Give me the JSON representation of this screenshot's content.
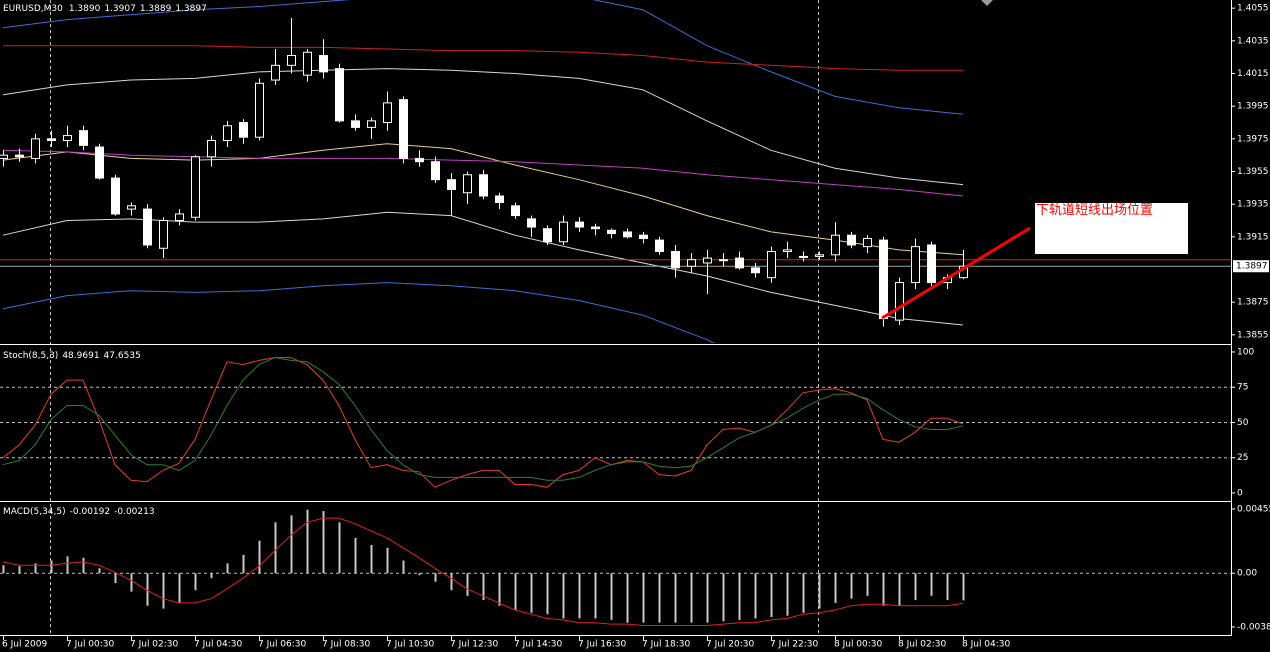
{
  "chart_data": [
    {
      "type": "candlestick",
      "title": "EURUSD,M30",
      "header_labels": [
        "1.3890",
        "1.3907",
        "1.3889",
        "1.3897"
      ],
      "categories": [
        "6 Jul 2009",
        null,
        null,
        null,
        "7 Jul 00:30",
        null,
        null,
        null,
        "7 Jul 02:30",
        null,
        null,
        null,
        "7 Jul 04:30",
        null,
        null,
        null,
        "7 Jul 06:30",
        null,
        null,
        null,
        "7 Jul 08:30",
        null,
        null,
        null,
        "7 Jul 10:30",
        null,
        null,
        null,
        "7 Jul 12:30",
        null,
        null,
        null,
        "7 Jul 14:30",
        null,
        null,
        null,
        "7 Jul 16:30",
        null,
        null,
        null,
        "7 Jul 18:30",
        null,
        null,
        null,
        "7 Jul 20:30",
        null,
        null,
        null,
        "7 Jul 22:30",
        null,
        null,
        null,
        "8 Jul 00:30",
        null,
        null,
        null,
        "8 Jul 02:30",
        null,
        null,
        null,
        "8 Jul 04:30"
      ],
      "open": [
        1.3963,
        1.3965,
        1.3963,
        1.3975,
        1.3974,
        1.398,
        1.397,
        1.3951,
        1.3932,
        1.3932,
        1.3908,
        1.3925,
        1.3927,
        1.3964,
        1.3974,
        1.3985,
        1.3976,
        1.4011,
        1.402,
        1.4014,
        1.4026,
        1.4018,
        1.3986,
        1.3982,
        1.3985,
        1.3999,
        1.3963,
        1.3961,
        1.395,
        1.3942,
        1.3953,
        1.394,
        1.3934,
        1.3926,
        1.392,
        1.3912,
        1.3924,
        1.3921,
        1.3919,
        1.3918,
        1.3916,
        1.3913,
        1.3906,
        1.3897,
        1.3899,
        1.3901,
        1.3902,
        1.3896,
        1.389,
        1.3906,
        1.3903,
        1.3903,
        1.3904,
        1.3916,
        1.3909,
        1.3913,
        1.3864,
        1.3887,
        1.391,
        1.3887,
        1.389
      ],
      "high": [
        1.3968,
        1.3969,
        1.3978,
        1.398,
        1.3983,
        1.3983,
        1.3972,
        1.3953,
        1.3936,
        1.3935,
        1.3927,
        1.3932,
        1.3965,
        1.3977,
        1.3986,
        1.3987,
        1.4012,
        1.403,
        1.4049,
        1.403,
        1.4036,
        1.4021,
        1.399,
        1.3988,
        1.4004,
        1.4001,
        1.3968,
        1.3964,
        1.3954,
        1.3955,
        1.3956,
        1.3942,
        1.3936,
        1.3928,
        1.3922,
        1.3928,
        1.3927,
        1.3923,
        1.392,
        1.392,
        1.3918,
        1.3915,
        1.391,
        1.3905,
        1.3907,
        1.3905,
        1.3906,
        1.3899,
        1.3909,
        1.3912,
        1.3906,
        1.3906,
        1.3924,
        1.3918,
        1.3916,
        1.3915,
        1.389,
        1.3914,
        1.3912,
        1.3892,
        1.3907
      ],
      "low": [
        1.3958,
        1.3961,
        1.396,
        1.397,
        1.397,
        1.3968,
        1.395,
        1.3928,
        1.3928,
        1.3908,
        1.3902,
        1.3922,
        1.3925,
        1.3958,
        1.397,
        1.3972,
        1.3974,
        1.4008,
        1.4015,
        1.401,
        1.4012,
        1.3985,
        1.398,
        1.3975,
        1.398,
        1.396,
        1.3958,
        1.3948,
        1.3928,
        1.3935,
        1.3938,
        1.3932,
        1.3926,
        1.3915,
        1.391,
        1.391,
        1.3918,
        1.3916,
        1.3914,
        1.3914,
        1.3911,
        1.3904,
        1.389,
        1.3893,
        1.388,
        1.3897,
        1.3895,
        1.389,
        1.3887,
        1.3902,
        1.39,
        1.3901,
        1.39,
        1.3908,
        1.3905,
        1.386,
        1.3861,
        1.3883,
        1.3885,
        1.3883,
        1.3889
      ],
      "close": [
        1.3965,
        1.3964,
        1.3975,
        1.3974,
        1.3977,
        1.3971,
        1.3951,
        1.3929,
        1.3934,
        1.391,
        1.3925,
        1.3929,
        1.3964,
        1.3974,
        1.3983,
        1.3976,
        1.4009,
        1.402,
        1.4026,
        1.4028,
        1.4016,
        1.3986,
        1.3982,
        1.3986,
        1.3997,
        1.3963,
        1.3961,
        1.395,
        1.3944,
        1.3953,
        1.394,
        1.3936,
        1.3928,
        1.3921,
        1.3912,
        1.3924,
        1.3921,
        1.392,
        1.3917,
        1.3915,
        1.3914,
        1.3906,
        1.3896,
        1.3901,
        1.3902,
        1.3901,
        1.3896,
        1.3893,
        1.3906,
        1.3907,
        1.3903,
        1.3904,
        1.3916,
        1.391,
        1.3914,
        1.3865,
        1.3887,
        1.3909,
        1.3887,
        1.389,
        1.3897
      ],
      "bull_color": "#000000",
      "bear_color": "#ffffff",
      "overlays": [
        {
          "color": "#3a6fd8",
          "values": [
            1.4043,
            1.4048,
            1.4051,
            1.4054,
            1.4056,
            1.4059,
            1.4062,
            1.4063,
            1.4063,
            1.4062,
            1.4054,
            1.4032,
            1.4016,
            1.4001,
            1.3994,
            1.399
          ]
        },
        {
          "color": "#d8d8d8",
          "values": [
            1.4002,
            1.4008,
            1.4011,
            1.4012,
            1.4016,
            1.4017,
            1.4018,
            1.4017,
            1.4015,
            1.4012,
            1.4005,
            1.3986,
            1.3968,
            1.3957,
            1.3951,
            1.3947
          ]
        },
        {
          "color": "#e8cf86",
          "values": [
            1.3962,
            1.3967,
            1.3963,
            1.3962,
            1.3963,
            1.3968,
            1.3972,
            1.3969,
            1.3959,
            1.395,
            1.394,
            1.3928,
            1.3918,
            1.3913,
            1.3907,
            1.3904
          ]
        },
        {
          "color": "#d8d8d8",
          "values": [
            1.3916,
            1.3925,
            1.3926,
            1.3924,
            1.3924,
            1.3926,
            1.393,
            1.3928,
            1.3916,
            1.3907,
            1.3899,
            1.3891,
            1.3881,
            1.3873,
            1.3865,
            1.3861
          ]
        },
        {
          "color": "#3a6fd8",
          "values": [
            1.3871,
            1.3879,
            1.3882,
            1.3881,
            1.3882,
            1.3885,
            1.3887,
            1.3885,
            1.3882,
            1.3876,
            1.3867,
            1.3852,
            1.3833,
            1.3821,
            1.3815,
            1.3812
          ]
        },
        {
          "color": "#d02020",
          "values": [
            1.4032,
            1.4032,
            1.4032,
            1.4032,
            1.4031,
            1.4031,
            1.403,
            1.4029,
            1.4029,
            1.4028,
            1.4026,
            1.4022,
            1.402,
            1.4018,
            1.4017,
            1.4017
          ]
        },
        {
          "color": "#c040c0",
          "values": [
            1.3968,
            1.3967,
            1.3965,
            1.3964,
            1.3963,
            1.3963,
            1.3963,
            1.3962,
            1.3961,
            1.3959,
            1.3957,
            1.3953,
            1.395,
            1.3947,
            1.3944,
            1.394
          ]
        }
      ],
      "hline": {
        "value": 1.3901,
        "color": "#e02020"
      },
      "bid": 1.3897,
      "bid_color": "#a0a0a0",
      "ylim": [
        1.385,
        1.406
      ],
      "yticks": [
        1.4055,
        1.4035,
        1.4015,
        1.3995,
        1.3975,
        1.3955,
        1.3935,
        1.3915,
        1.3875,
        1.3855
      ],
      "annotation": "下轨道短线出场位置"
    },
    {
      "type": "line",
      "title": "Stoch(8,5,3)",
      "series": [
        {
          "color": "#e0402a",
          "values": [
            25,
            34,
            48,
            70,
            80,
            80,
            52,
            20,
            9,
            8,
            16,
            21,
            38,
            66,
            93,
            91,
            94,
            96,
            96,
            91,
            80,
            62,
            38,
            18,
            20,
            16,
            15,
            4,
            9,
            13,
            16,
            16,
            6,
            6,
            4,
            13,
            16,
            25,
            20,
            23,
            22,
            13,
            12,
            16,
            34,
            45,
            46,
            43,
            48,
            59,
            71,
            73,
            74,
            71,
            66,
            38,
            36,
            43,
            53,
            53,
            48.9691
          ]
        },
        {
          "color": "#2e7d2e",
          "values": [
            20,
            23,
            34,
            52,
            62,
            62,
            55,
            41,
            27,
            20,
            20,
            16,
            23,
            41,
            62,
            80,
            91,
            96,
            94,
            93,
            86,
            77,
            62,
            45,
            30,
            20,
            13,
            11,
            11,
            11,
            11,
            11,
            11,
            11,
            9,
            9,
            11,
            16,
            20,
            22,
            22,
            19,
            18,
            19,
            25,
            32,
            39,
            43,
            48,
            53,
            60,
            66,
            70,
            70,
            67,
            59,
            52,
            47,
            45,
            45,
            47.6535
          ]
        }
      ],
      "levels": [
        75,
        50,
        25
      ],
      "ylim": [
        -5,
        103.5
      ],
      "yticks": [
        100,
        75,
        50,
        25,
        0
      ]
    },
    {
      "type": "combo",
      "title": "MACD(5,34,5)",
      "series": [
        {
          "type": "bar",
          "color": "#c8c8c8",
          "values": [
            0.00057,
            0.0005,
            0.0007,
            0.0009,
            0.0012,
            0.0011,
            0.00035,
            -0.0007,
            -0.0013,
            -0.0023,
            -0.0025,
            -0.0021,
            -0.0012,
            -0.00035,
            0.0007,
            0.0013,
            0.0023,
            0.0036,
            0.0041,
            0.0045,
            0.0044,
            0.0036,
            0.0025,
            0.002,
            0.0018,
            0.0009,
            -0.00014,
            -0.0006,
            -0.0012,
            -0.0016,
            -0.0019,
            -0.0023,
            -0.0026,
            -0.0028,
            -0.0029,
            -0.0032,
            -0.0032,
            -0.0032,
            -0.0033,
            -0.0035,
            -0.0035,
            -0.0035,
            -0.0035,
            -0.0035,
            -0.0035,
            -0.0034,
            -0.0033,
            -0.0032,
            -0.0031,
            -0.003,
            -0.0028,
            -0.0025,
            -0.0021,
            -0.0018,
            -0.0016,
            -0.0023,
            -0.0023,
            -0.0019,
            -0.0016,
            -0.0019,
            -0.00192
          ]
        },
        {
          "type": "line",
          "color": "#e02020",
          "values": [
            0.0008,
            0.00057,
            0.00057,
            0.00057,
            0.0007,
            0.0008,
            0.00057,
            7e-05,
            -0.0005,
            -0.0012,
            -0.0018,
            -0.0021,
            -0.0021,
            -0.0018,
            -0.0011,
            -0.00035,
            0.0005,
            0.0016,
            0.0027,
            0.0036,
            0.0039,
            0.0039,
            0.0035,
            0.003,
            0.0025,
            0.0018,
            0.0011,
            0.00035,
            -0.00035,
            -0.0011,
            -0.0016,
            -0.0021,
            -0.0026,
            -0.0029,
            -0.0032,
            -0.0033,
            -0.0035,
            -0.0035,
            -0.0036,
            -0.0036,
            -0.0037,
            -0.0037,
            -0.0037,
            -0.0037,
            -0.0037,
            -0.0036,
            -0.0035,
            -0.0035,
            -0.0033,
            -0.0032,
            -0.0029,
            -0.0028,
            -0.0026,
            -0.0023,
            -0.0022,
            -0.0022,
            -0.0023,
            -0.0023,
            -0.0023,
            -0.0023,
            -0.00213
          ]
        }
      ],
      "levels": [
        0
      ],
      "ylim": [
        -0.00437,
        0.00497
      ],
      "yticks": [
        0.00455,
        {
          "value": 0,
          "label": "0.00"
        },
        -0.0038
      ]
    }
  ]
}
